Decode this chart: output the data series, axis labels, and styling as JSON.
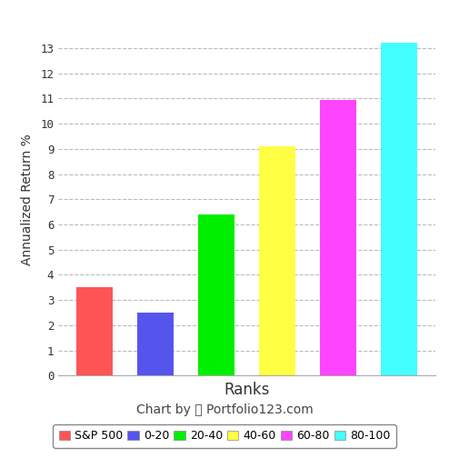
{
  "categories": [
    "S&P 500",
    "0-20",
    "20-40",
    "40-60",
    "60-80",
    "80-100"
  ],
  "values": [
    3.5,
    2.5,
    6.4,
    9.1,
    10.95,
    13.2
  ],
  "bar_colors": [
    "#FF5555",
    "#5555EE",
    "#00EE00",
    "#FFFF44",
    "#FF44FF",
    "#44FFFF"
  ],
  "legend_labels": [
    "S&P 500",
    "0-20",
    "20-40",
    "40-60",
    "60-80",
    "80-100"
  ],
  "xlabel": "Ranks",
  "ylabel": "Annualized Return %",
  "ylim": [
    0,
    14
  ],
  "yticks": [
    0,
    1,
    2,
    3,
    4,
    5,
    6,
    7,
    8,
    9,
    10,
    11,
    12,
    13
  ],
  "chart_credit": "Chart by  Portfolio123.com",
  "background_color": "#FFFFFF",
  "grid_color": "#BBBBBB",
  "bar_width": 0.6,
  "xlabel_fontsize": 12,
  "ylabel_fontsize": 10,
  "credit_fontsize": 10,
  "legend_fontsize": 9
}
